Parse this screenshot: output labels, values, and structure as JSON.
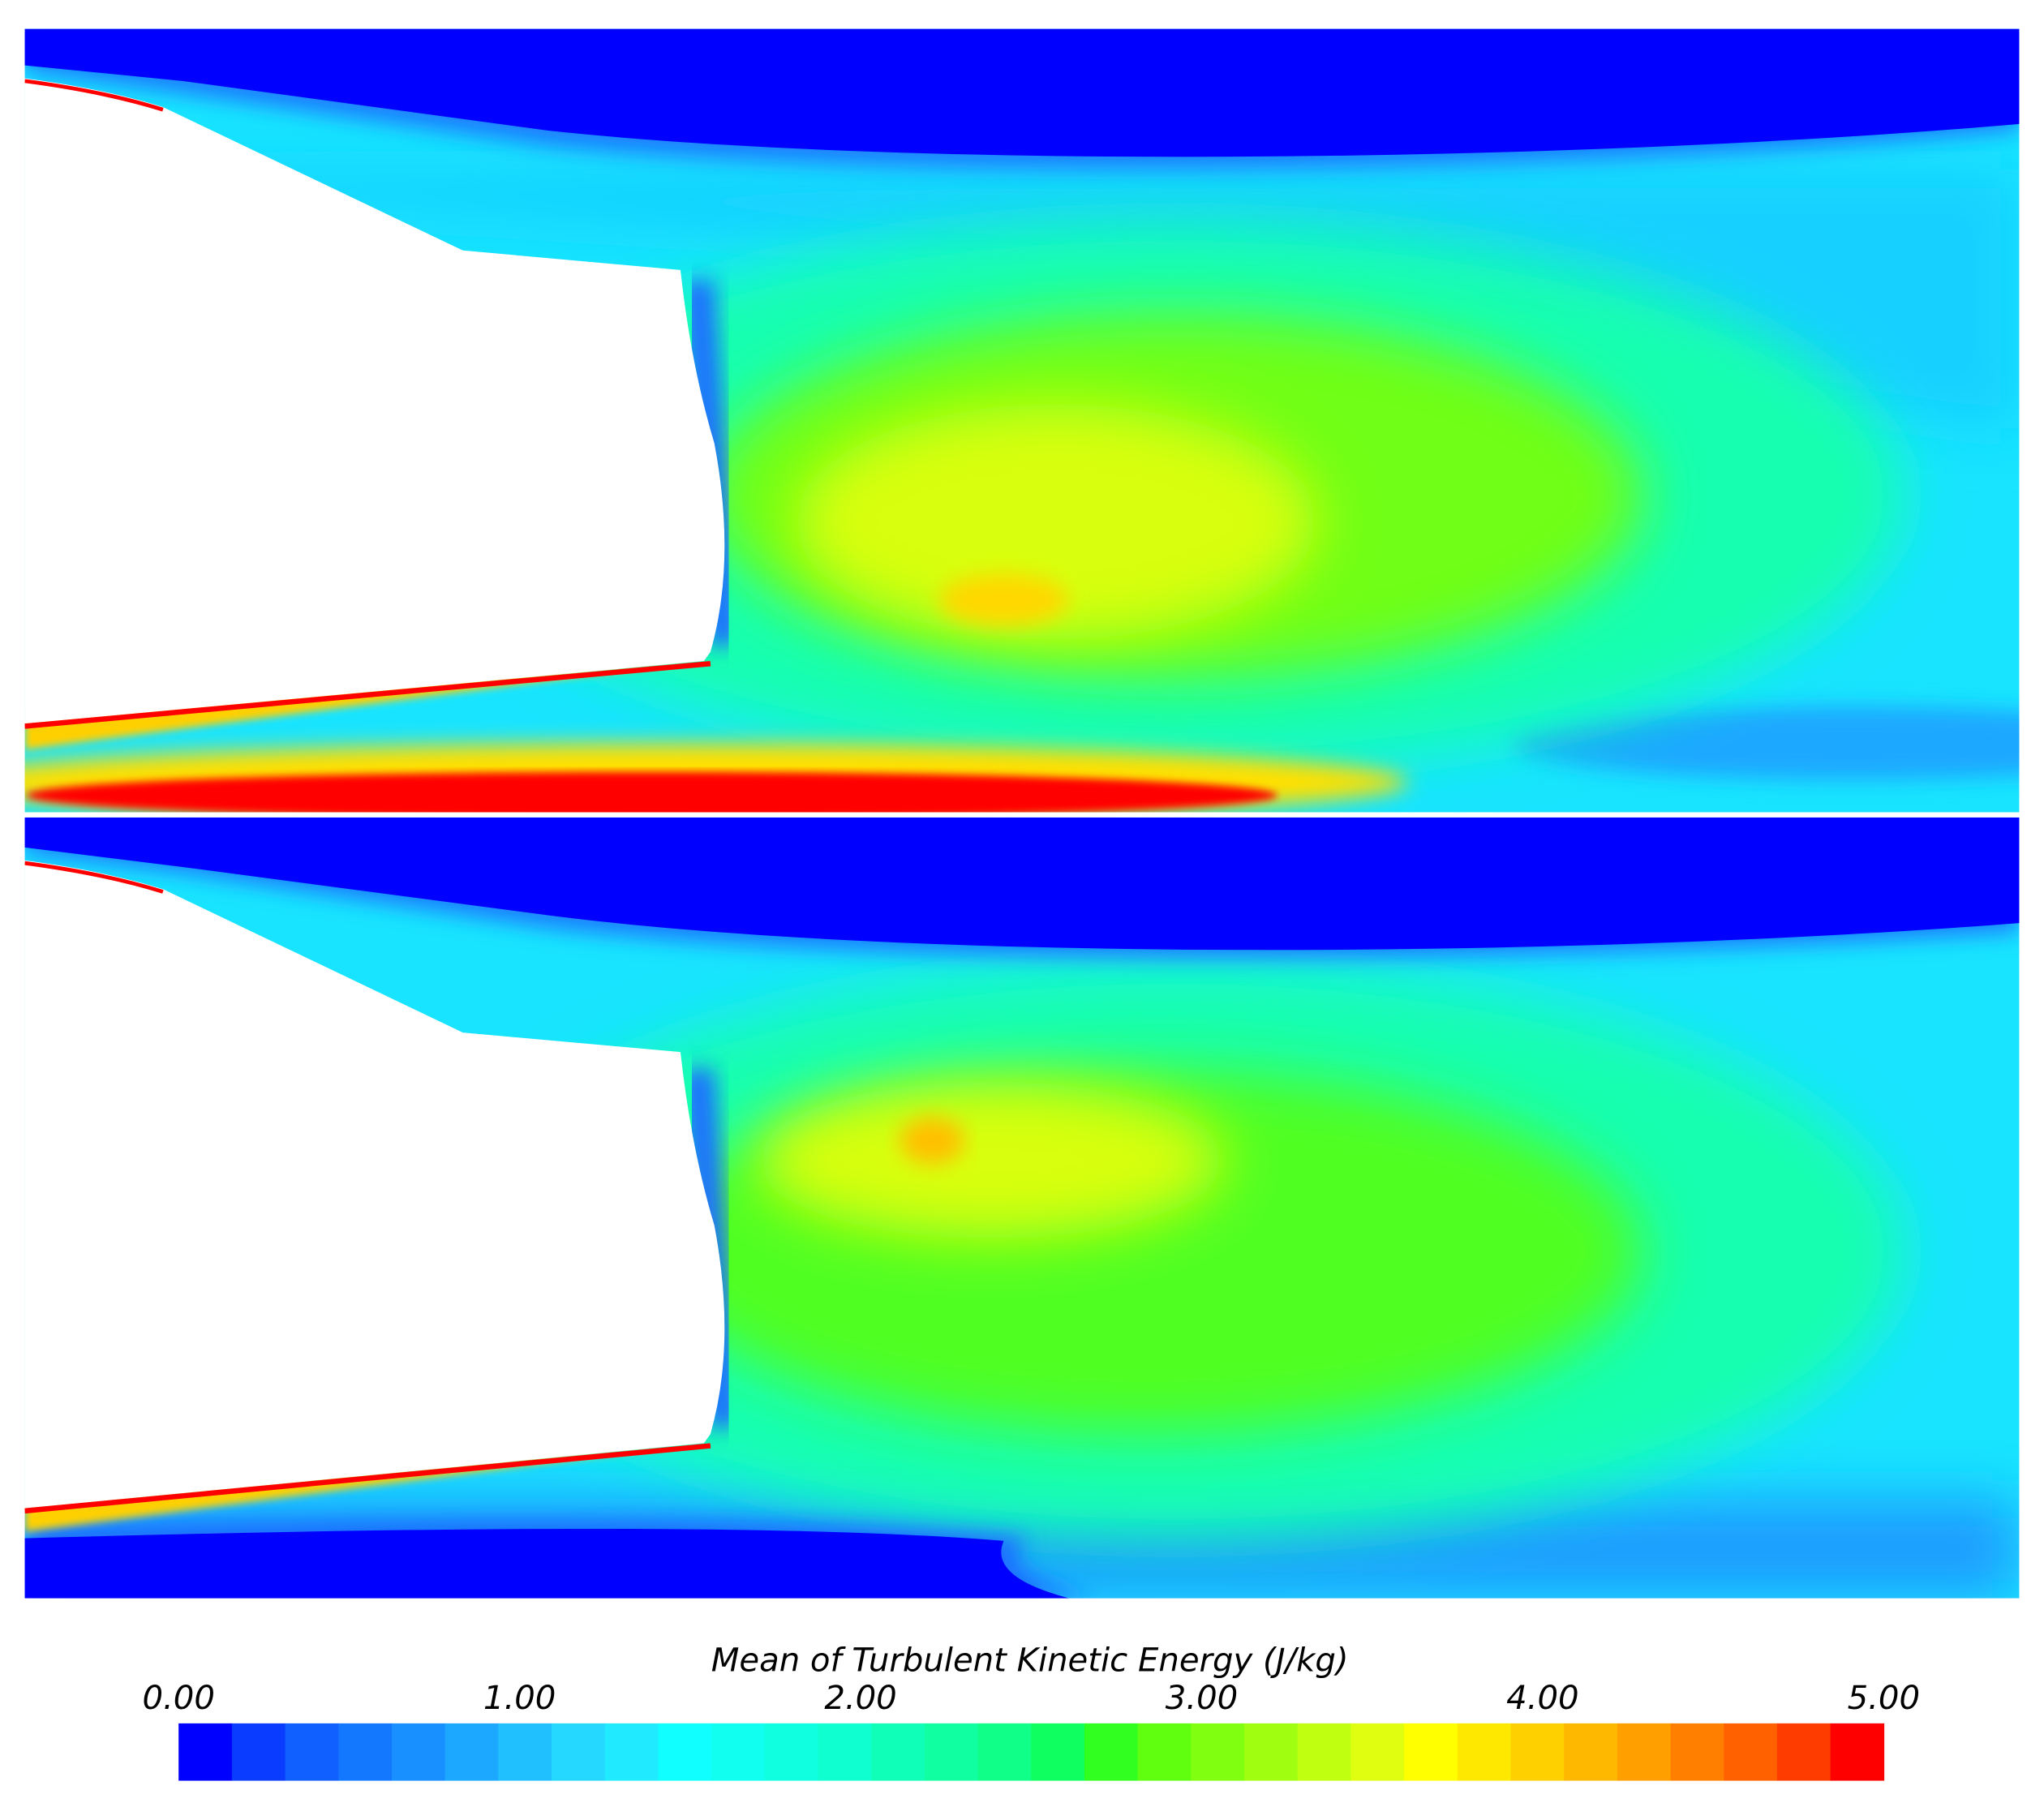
{
  "chart_data": {
    "type": "colorbar",
    "title": "Mean of Turbulent Kinetic Energy (J/kg)",
    "clim": [
      0,
      5
    ],
    "ticks": [
      {
        "value": 0,
        "label": "0.00"
      },
      {
        "value": 1,
        "label": "1.00"
      },
      {
        "value": 2,
        "label": "2.00"
      },
      {
        "value": 3,
        "label": "3.00"
      },
      {
        "value": 4,
        "label": "4.00"
      },
      {
        "value": 5,
        "label": "5.00"
      }
    ],
    "colors": [
      "#0000ff",
      "#0a3cff",
      "#1060ff",
      "#1478ff",
      "#1890ff",
      "#1ca8ff",
      "#20c0ff",
      "#24d8ff",
      "#20eaff",
      "#10ffff",
      "#10fff0",
      "#10ffe0",
      "#10ffd0",
      "#10ffb8",
      "#10ffa0",
      "#10ff88",
      "#10ff60",
      "#30ff20",
      "#60ff10",
      "#80ff10",
      "#a0ff10",
      "#c0ff10",
      "#e0ff10",
      "#ffff00",
      "#ffe800",
      "#ffd000",
      "#ffb800",
      "#ffa000",
      "#ff8000",
      "#ff6000",
      "#ff3c00",
      "#ff0000"
    ]
  }
}
